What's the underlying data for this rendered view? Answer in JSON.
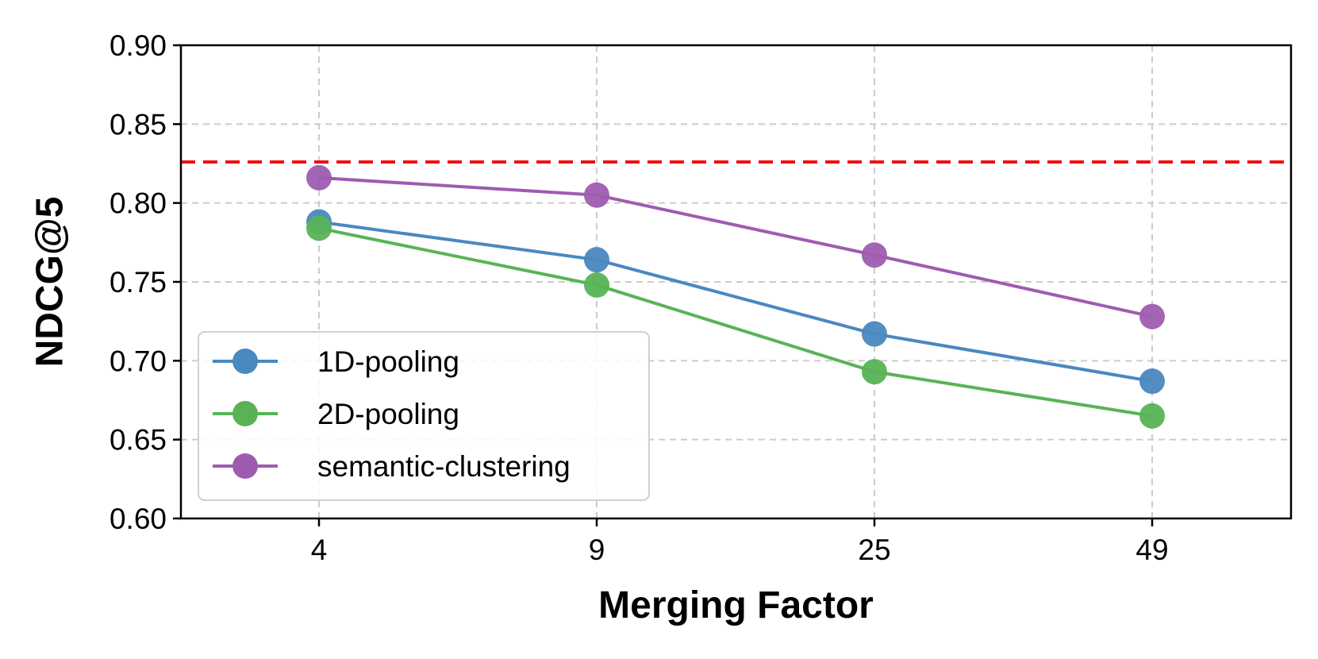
{
  "chart_data": {
    "type": "line",
    "title": "",
    "xlabel": "Merging Factor",
    "ylabel": "NDCG@5",
    "categories": [
      "4",
      "9",
      "25",
      "49"
    ],
    "ylim": [
      0.6,
      0.9
    ],
    "yticks": [
      "0.60",
      "0.65",
      "0.70",
      "0.75",
      "0.80",
      "0.85",
      "0.90"
    ],
    "grid": true,
    "legend_position": "bottom-left",
    "reference_line": {
      "value": 0.826,
      "color": "#ee1111",
      "style": "dashed"
    },
    "series": [
      {
        "name": "1D-pooling",
        "color": "#4a88c0",
        "values": [
          0.788,
          0.764,
          0.717,
          0.687
        ]
      },
      {
        "name": "2D-pooling",
        "color": "#59b356",
        "values": [
          0.784,
          0.748,
          0.693,
          0.665
        ]
      },
      {
        "name": "semantic-clustering",
        "color": "#9e5cb0",
        "values": [
          0.816,
          0.805,
          0.767,
          0.728
        ]
      }
    ]
  }
}
